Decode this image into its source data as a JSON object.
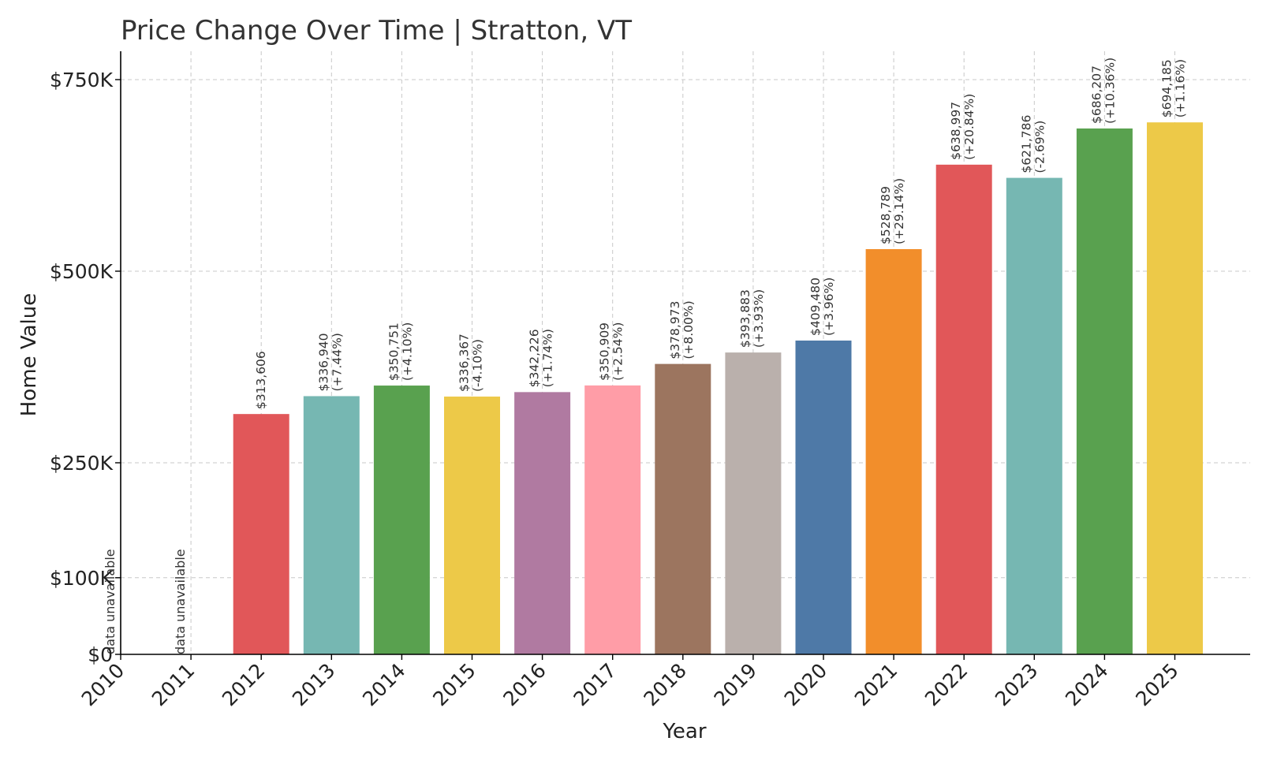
{
  "chart_data": {
    "type": "bar",
    "title": "Price Change Over Time | Stratton, VT",
    "xlabel": "Year",
    "ylabel": "Home Value",
    "categories": [
      "2010",
      "2011",
      "2012",
      "2013",
      "2014",
      "2015",
      "2016",
      "2017",
      "2018",
      "2019",
      "2020",
      "2021",
      "2022",
      "2023",
      "2024",
      "2025"
    ],
    "values": [
      null,
      null,
      313606,
      336940,
      350751,
      336367,
      342226,
      350909,
      378973,
      393883,
      409480,
      528789,
      638997,
      621786,
      686207,
      694185
    ],
    "value_labels": [
      "",
      "",
      "$313,606",
      "$336,940",
      "$350,751",
      "$336,367",
      "$342,226",
      "$350,909",
      "$378,973",
      "$393,883",
      "$409,480",
      "$528,789",
      "$638,997",
      "$621,786",
      "$686,207",
      "$694,185"
    ],
    "change_labels": [
      "",
      "",
      "",
      "(+7.44%)",
      "(+4.10%)",
      "(-4.10%)",
      "(+1.74%)",
      "(+2.54%)",
      "(+8.00%)",
      "(+3.93%)",
      "(+3.96%)",
      "(+29.14%)",
      "(+20.84%)",
      "(-2.69%)",
      "(+10.36%)",
      "(+1.16%)"
    ],
    "missing_label": "data unavailable",
    "colors": [
      "#e15759",
      "#e15759",
      "#e15759",
      "#76b7b2",
      "#59a14f",
      "#edc948",
      "#b07aa1",
      "#ff9da7",
      "#9c755f",
      "#bab0ac",
      "#4e79a7",
      "#f28e2b",
      "#e15759",
      "#76b7b2",
      "#59a14f",
      "#edc948"
    ],
    "yticks": [
      0,
      100000,
      250000,
      500000,
      750000
    ],
    "ytick_labels": [
      "$0",
      "$100K",
      "$250K",
      "$500K",
      "$750K"
    ],
    "ylim": [
      0,
      787000
    ],
    "grid": true
  }
}
